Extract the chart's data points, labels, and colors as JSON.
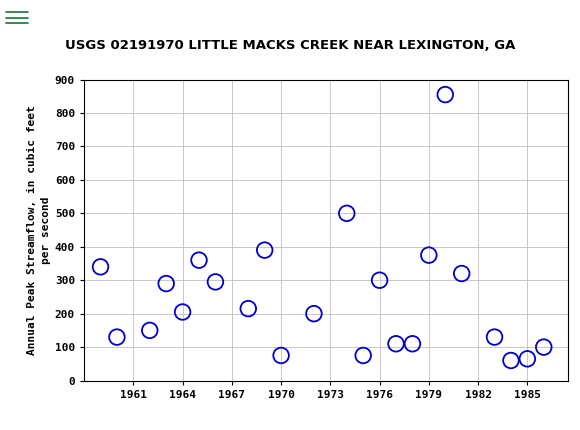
{
  "title": "USGS 02191970 LITTLE MACKS CREEK NEAR LEXINGTON, GA",
  "ylabel": "Annual Peak Streamflow, in cubic feet\nper second",
  "xlabel": "",
  "years": [
    1959,
    1960,
    1962,
    1963,
    1964,
    1965,
    1966,
    1968,
    1969,
    1970,
    1972,
    1974,
    1975,
    1976,
    1977,
    1978,
    1979,
    1980,
    1981,
    1983,
    1984,
    1985,
    1986
  ],
  "values": [
    340,
    130,
    150,
    290,
    205,
    360,
    295,
    215,
    390,
    75,
    200,
    500,
    75,
    300,
    110,
    110,
    375,
    855,
    320,
    130,
    60,
    65,
    100
  ],
  "marker_color": "#0000cc",
  "marker_facecolor": "none",
  "marker_size": 6,
  "ylim": [
    0,
    900
  ],
  "xlim": [
    1958.0,
    1987.5
  ],
  "yticks": [
    0,
    100,
    200,
    300,
    400,
    500,
    600,
    700,
    800,
    900
  ],
  "xticks": [
    1961,
    1964,
    1967,
    1970,
    1973,
    1976,
    1979,
    1982,
    1985
  ],
  "grid_color": "#c8c8c8",
  "background_color": "#ffffff",
  "header_color": "#1a7337",
  "title_fontsize": 9.5,
  "ylabel_fontsize": 8,
  "tick_fontsize": 8,
  "usgs_text": "USGS",
  "usgs_fontsize": 12
}
